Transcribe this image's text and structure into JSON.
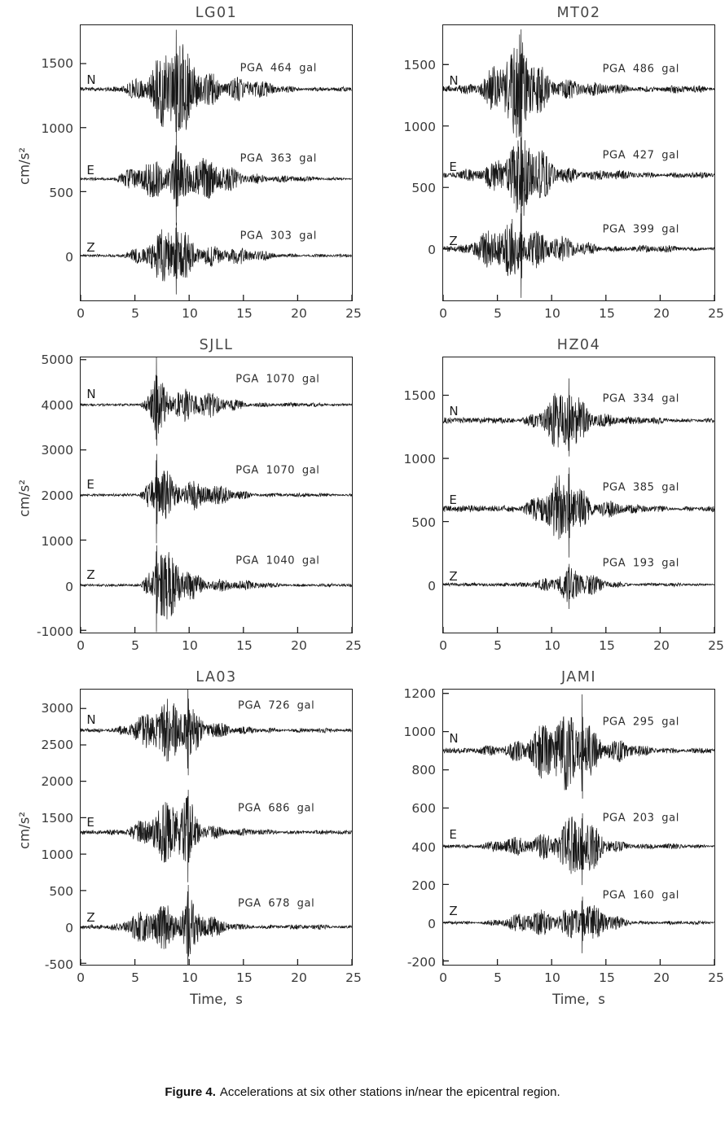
{
  "figure": {
    "caption_bold": "Figure 4.",
    "caption_rest": "Accelerations at six other stations in/near the epicentral region."
  },
  "axes": {
    "xlabel": "Time,  s",
    "ylabel": "cm/s²"
  },
  "chart_data": [
    {
      "type": "line",
      "station": "LG01",
      "x_range": [
        0,
        25
      ],
      "xticks": [
        0,
        5,
        10,
        15,
        20,
        25
      ],
      "y_range": [
        -350,
        1800
      ],
      "yticks": [
        0,
        500,
        1000,
        1500
      ],
      "show_ylabel": true,
      "show_xlabel": false,
      "label_x": 14.6,
      "label_dy": 165,
      "envelope": {
        "onset": 2.3,
        "peak": 8.8,
        "tau": 4.2,
        "pre": 0.035,
        "coda": 0.1
      },
      "series": [
        {
          "component": "N",
          "baseline": 1300,
          "pga": 464,
          "pga_label": "PGA 464 gal"
        },
        {
          "component": "E",
          "baseline": 600,
          "pga": 363,
          "pga_label": "PGA 363 gal"
        },
        {
          "component": "Z",
          "baseline": 0,
          "pga": 303,
          "pga_label": "PGA 303 gal"
        }
      ]
    },
    {
      "type": "line",
      "station": "MT02",
      "x_range": [
        0,
        25
      ],
      "xticks": [
        0,
        5,
        10,
        15,
        20,
        25
      ],
      "y_range": [
        -420,
        1820
      ],
      "yticks": [
        0,
        500,
        1000,
        1500
      ],
      "show_ylabel": false,
      "show_xlabel": false,
      "label_x": 14.6,
      "label_dy": 165,
      "envelope": {
        "onset": 0.8,
        "peak": 7.2,
        "tau": 3.2,
        "pre": 0.07,
        "coda": 0.16
      },
      "series": [
        {
          "component": "N",
          "baseline": 1300,
          "pga": 486,
          "pga_label": "PGA 486 gal"
        },
        {
          "component": "E",
          "baseline": 600,
          "pga": 427,
          "pga_label": "PGA 427 gal"
        },
        {
          "component": "Z",
          "baseline": 0,
          "pga": 399,
          "pga_label": "PGA 399 gal"
        }
      ]
    },
    {
      "type": "line",
      "station": "SJLL",
      "x_range": [
        0,
        25
      ],
      "xticks": [
        0,
        5,
        10,
        15,
        20,
        25
      ],
      "y_range": [
        -1050,
        5050
      ],
      "yticks": [
        -1000,
        0,
        1000,
        2000,
        3000,
        4000,
        5000
      ],
      "show_ylabel": true,
      "show_xlabel": false,
      "label_x": 14.2,
      "label_dy": 560,
      "envelope": {
        "onset": 5.4,
        "peak": 7.0,
        "tau": 3.8,
        "pre": 0.03,
        "coda": 0.1
      },
      "series": [
        {
          "component": "N",
          "baseline": 4000,
          "pga": 1070,
          "pga_label": "PGA 1070 gal"
        },
        {
          "component": "E",
          "baseline": 2000,
          "pga": 1070,
          "pga_label": "PGA 1070 gal"
        },
        {
          "component": "Z",
          "baseline": 0,
          "pga": 1040,
          "pga_label": "PGA 1040 gal"
        }
      ]
    },
    {
      "type": "line",
      "station": "HZ04",
      "x_range": [
        0,
        25
      ],
      "xticks": [
        0,
        5,
        10,
        15,
        20,
        25
      ],
      "y_range": [
        -380,
        1800
      ],
      "yticks": [
        0,
        500,
        1000,
        1500
      ],
      "show_ylabel": false,
      "show_xlabel": false,
      "label_x": 14.6,
      "label_dy": 175,
      "envelope": {
        "onset": 6.5,
        "peak": 11.6,
        "tau": 2.6,
        "pre": 0.08,
        "coda": 0.14
      },
      "series": [
        {
          "component": "N",
          "baseline": 1300,
          "pga": 334,
          "pga_label": "PGA 334 gal"
        },
        {
          "component": "E",
          "baseline": 600,
          "pga": 385,
          "pga_label": "PGA 385 gal"
        },
        {
          "component": "Z",
          "baseline": 0,
          "pga": 193,
          "pga_label": "PGA 193 gal"
        }
      ]
    },
    {
      "type": "line",
      "station": "LA03",
      "x_range": [
        0,
        25
      ],
      "xticks": [
        0,
        5,
        10,
        15,
        20,
        25
      ],
      "y_range": [
        -520,
        3260
      ],
      "yticks": [
        -500,
        0,
        500,
        1000,
        1500,
        2000,
        2500,
        3000
      ],
      "show_ylabel": true,
      "show_xlabel": true,
      "label_x": 14.4,
      "label_dy": 340,
      "envelope": {
        "onset": 2.0,
        "peak": 9.9,
        "tau": 1.7,
        "pre": 0.05,
        "coda": 0.1
      },
      "series": [
        {
          "component": "N",
          "baseline": 2700,
          "pga": 726,
          "pga_label": "PGA 726 gal"
        },
        {
          "component": "E",
          "baseline": 1300,
          "pga": 686,
          "pga_label": "PGA 686 gal"
        },
        {
          "component": "Z",
          "baseline": 0,
          "pga": 678,
          "pga_label": "PGA 678 gal"
        }
      ]
    },
    {
      "type": "line",
      "station": "JAMI",
      "x_range": [
        0,
        25
      ],
      "xticks": [
        0,
        5,
        10,
        15,
        20,
        25
      ],
      "y_range": [
        -220,
        1220
      ],
      "yticks": [
        -200,
        0,
        200,
        400,
        600,
        800,
        1000,
        1200
      ],
      "show_ylabel": false,
      "show_xlabel": true,
      "label_x": 14.6,
      "label_dy": 150,
      "envelope": {
        "onset": 2.5,
        "peak": 12.8,
        "tau": 2.4,
        "pre": 0.06,
        "coda": 0.12
      },
      "series": [
        {
          "component": "N",
          "baseline": 900,
          "pga": 295,
          "pga_label": "PGA 295 gal"
        },
        {
          "component": "E",
          "baseline": 400,
          "pga": 203,
          "pga_label": "PGA 203 gal"
        },
        {
          "component": "Z",
          "baseline": 0,
          "pga": 160,
          "pga_label": "PGA 160 gal"
        }
      ]
    }
  ]
}
